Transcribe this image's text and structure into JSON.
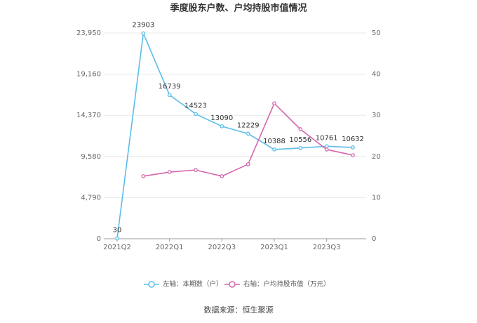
{
  "chart_data": {
    "type": "line",
    "title": "季度股东户数、户均持股市值情况",
    "categories": [
      "2021Q2",
      null,
      "2022Q1",
      null,
      "2022Q3",
      null,
      "2023Q1",
      null,
      "2023Q3",
      null
    ],
    "series": [
      {
        "name": "左轴：本期数（户）",
        "color": "#5bbde9",
        "values": [
          30,
          23903,
          16739,
          14523,
          13090,
          12229,
          10388,
          10556,
          10761,
          10632
        ],
        "data_labels": true
      },
      {
        "name": "右轴：户均持股市值（万元）",
        "color": "#d466ad",
        "axis": "y2",
        "values": [
          null,
          15.2,
          16.2,
          16.7,
          15.2,
          18.1,
          32.9,
          26.6,
          21.7,
          20.3
        ]
      }
    ],
    "ylim": [
      0,
      23950
    ],
    "yticks": [
      0,
      {
        "value": 4790,
        "label": "4,790"
      },
      {
        "value": 9580,
        "label": "9,580"
      },
      {
        "value": 14370,
        "label": "14,370"
      },
      {
        "value": 19160,
        "label": "19,160"
      },
      {
        "value": 23950,
        "label": "23,950"
      }
    ],
    "y2lim": [
      0,
      50
    ],
    "y2ticks": [
      0,
      10,
      20,
      30,
      40,
      50
    ],
    "grid": true,
    "legend": "bottom",
    "source": "数据来源：恒生聚源"
  }
}
